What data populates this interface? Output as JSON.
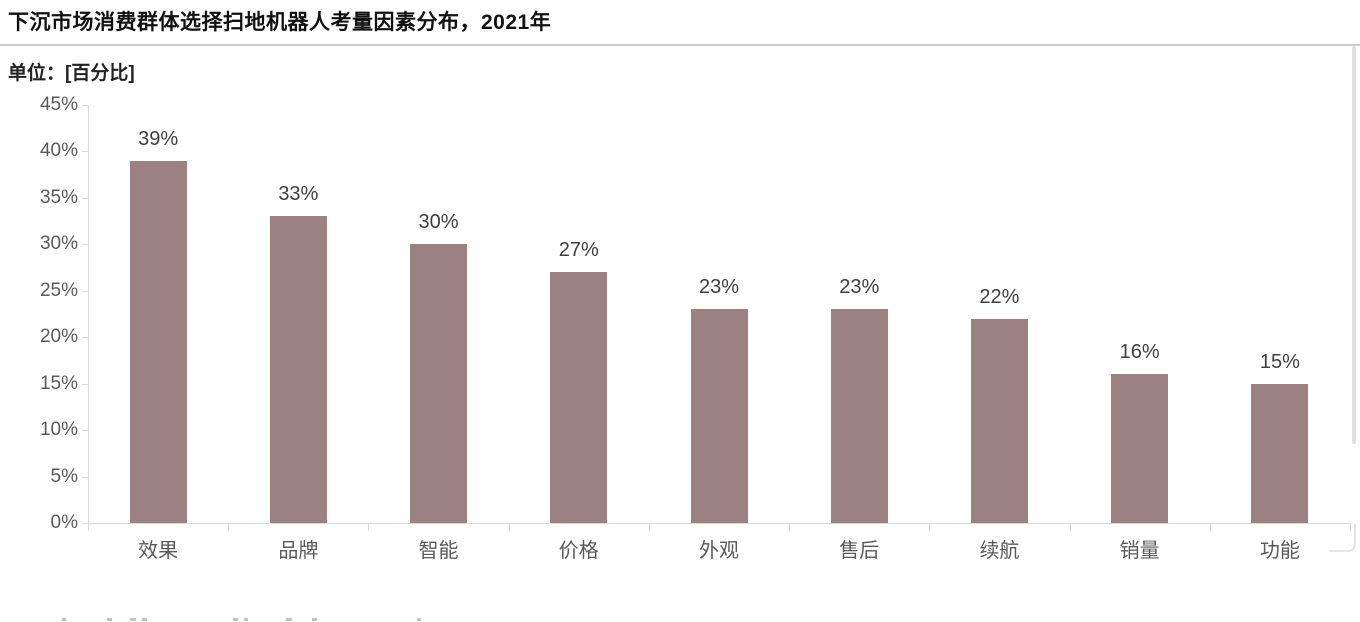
{
  "header": {
    "title": "下沉市场消费群体选择扫地机器人考量因素分布，2021年"
  },
  "chart": {
    "unit_label": "单位：[百分比]"
  },
  "chart_data": {
    "type": "bar",
    "title": "下沉市场消费群体选择扫地机器人考量因素分布，2021年",
    "unit": "百分比",
    "categories": [
      "效果",
      "品牌",
      "智能",
      "价格",
      "外观",
      "售后",
      "续航",
      "销量",
      "功能"
    ],
    "values": [
      39,
      33,
      30,
      27,
      23,
      23,
      22,
      16,
      15
    ],
    "data_labels": [
      "39%",
      "33%",
      "30%",
      "27%",
      "23%",
      "23%",
      "22%",
      "16%",
      "15%"
    ],
    "xlabel": "",
    "ylabel": "",
    "ylim": [
      0,
      45
    ],
    "ytick_step": 5,
    "yticks": [
      "0%",
      "5%",
      "10%",
      "15%",
      "20%",
      "25%",
      "30%",
      "35%",
      "40%",
      "45%"
    ],
    "grid": false,
    "legend_position": "none",
    "bar_color": "#9c8183",
    "axis_color": "#d9d9d9",
    "tick_label_color": "#595959",
    "data_label_color": "#3f3f3f"
  }
}
